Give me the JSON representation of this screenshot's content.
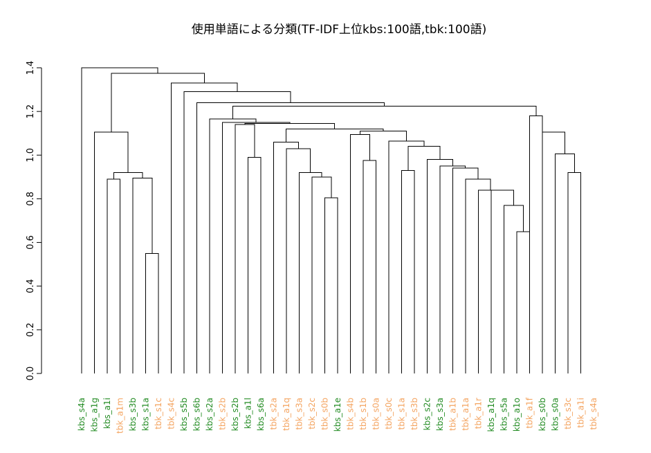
{
  "colors": {
    "kbs": "#228b22",
    "tbk": "#f4a460"
  },
  "chart_data": {
    "type": "dendrogram",
    "title": "使用単語による分類(TF-IDF上位kbs:100語,tbk:100語)",
    "ylabel": "",
    "xlabel": "",
    "ylim": [
      0,
      1.4
    ],
    "yticks": [
      "0.0",
      "0.2",
      "0.4",
      "0.6",
      "0.8",
      "1.0",
      "1.2",
      "1.4"
    ],
    "leaves": [
      {
        "label": "kbs_s4a",
        "group": "kbs"
      },
      {
        "label": "kbs_a1g",
        "group": "kbs"
      },
      {
        "label": "kbs_a1i",
        "group": "kbs"
      },
      {
        "label": "tbk_a1m",
        "group": "tbk"
      },
      {
        "label": "kbs_s3b",
        "group": "kbs"
      },
      {
        "label": "kbs_s1a",
        "group": "kbs"
      },
      {
        "label": "tbk_s1c",
        "group": "tbk"
      },
      {
        "label": "tbk_s4c",
        "group": "tbk"
      },
      {
        "label": "kbs_s5b",
        "group": "kbs"
      },
      {
        "label": "kbs_s6b",
        "group": "kbs"
      },
      {
        "label": "kbs_s2a",
        "group": "kbs"
      },
      {
        "label": "tbk_s2b",
        "group": "tbk"
      },
      {
        "label": "kbs_s2b",
        "group": "kbs"
      },
      {
        "label": "kbs_a1l",
        "group": "kbs"
      },
      {
        "label": "kbs_s6a",
        "group": "kbs"
      },
      {
        "label": "tbk_s2a",
        "group": "tbk"
      },
      {
        "label": "tbk_a1q",
        "group": "tbk"
      },
      {
        "label": "tbk_s3a",
        "group": "tbk"
      },
      {
        "label": "tbk_s2c",
        "group": "tbk"
      },
      {
        "label": "tbk_s0b",
        "group": "tbk"
      },
      {
        "label": "kbs_a1e",
        "group": "kbs"
      },
      {
        "label": "tbk_s4b",
        "group": "tbk"
      },
      {
        "label": "tbk_s1b",
        "group": "tbk"
      },
      {
        "label": "tbk_s0a",
        "group": "tbk"
      },
      {
        "label": "tbk_s0c",
        "group": "tbk"
      },
      {
        "label": "tbk_s1a",
        "group": "tbk"
      },
      {
        "label": "tbk_s3b",
        "group": "tbk"
      },
      {
        "label": "kbs_s2c",
        "group": "kbs"
      },
      {
        "label": "kbs_s3a",
        "group": "kbs"
      },
      {
        "label": "tbk_a1b",
        "group": "tbk"
      },
      {
        "label": "tbk_a1a",
        "group": "tbk"
      },
      {
        "label": "tbk_a1r",
        "group": "tbk"
      },
      {
        "label": "kbs_a1q",
        "group": "kbs"
      },
      {
        "label": "kbs_s5a",
        "group": "kbs"
      },
      {
        "label": "kbs_a1o",
        "group": "kbs"
      },
      {
        "label": "tbk_a1f",
        "group": "tbk"
      },
      {
        "label": "kbs_s0b",
        "group": "kbs"
      },
      {
        "label": "kbs_s0a",
        "group": "kbs"
      },
      {
        "label": "tbk_s3c",
        "group": "tbk"
      },
      {
        "label": "tbk_a1i",
        "group": "tbk"
      },
      {
        "label": "tbk_s4a",
        "group": "tbk"
      }
    ],
    "merges": [
      [
        5,
        6,
        0.55
      ],
      [
        34,
        35,
        0.65
      ],
      [
        19,
        20,
        0.805
      ],
      [
        38,
        39,
        0.92
      ],
      [
        4,
        -1,
        0.895
      ],
      [
        33,
        -2,
        0.77
      ],
      [
        2,
        3,
        0.89
      ],
      [
        18,
        -3,
        0.9
      ],
      [
        32,
        -6,
        0.84
      ],
      [
        31,
        -9,
        0.84
      ],
      [
        17,
        -8,
        0.92
      ],
      [
        -7,
        -5,
        0.92
      ],
      [
        22,
        23,
        0.975
      ],
      [
        25,
        26,
        0.93
      ],
      [
        13,
        14,
        0.99
      ],
      [
        37,
        -4,
        1.005
      ],
      [
        16,
        -11,
        1.03
      ],
      [
        30,
        -10,
        0.89
      ],
      [
        29,
        -18,
        0.94
      ],
      [
        28,
        -19,
        0.95
      ],
      [
        27,
        -20,
        0.98
      ],
      [
        -14,
        -21,
        1.04
      ],
      [
        24,
        -22,
        1.065
      ],
      [
        21,
        -13,
        1.095
      ],
      [
        15,
        -17,
        1.06
      ],
      [
        -23,
        -24,
        1.11
      ],
      [
        36,
        -16,
        1.105
      ],
      [
        1,
        -12,
        1.105
      ],
      [
        -25,
        -26,
        1.12
      ],
      [
        12,
        -15,
        1.14
      ],
      [
        -30,
        -29,
        1.145
      ],
      [
        11,
        -31,
        1.15
      ],
      [
        10,
        -32,
        1.165
      ],
      [
        35,
        36,
        1.18
      ],
      [
        -33,
        -34,
        1.225
      ],
      [
        9,
        -35,
        1.24
      ],
      [
        8,
        -36,
        1.29
      ],
      [
        7,
        -37,
        1.33
      ],
      [
        -28,
        -38,
        1.375
      ],
      [
        0,
        -39,
        1.4
      ]
    ]
  }
}
